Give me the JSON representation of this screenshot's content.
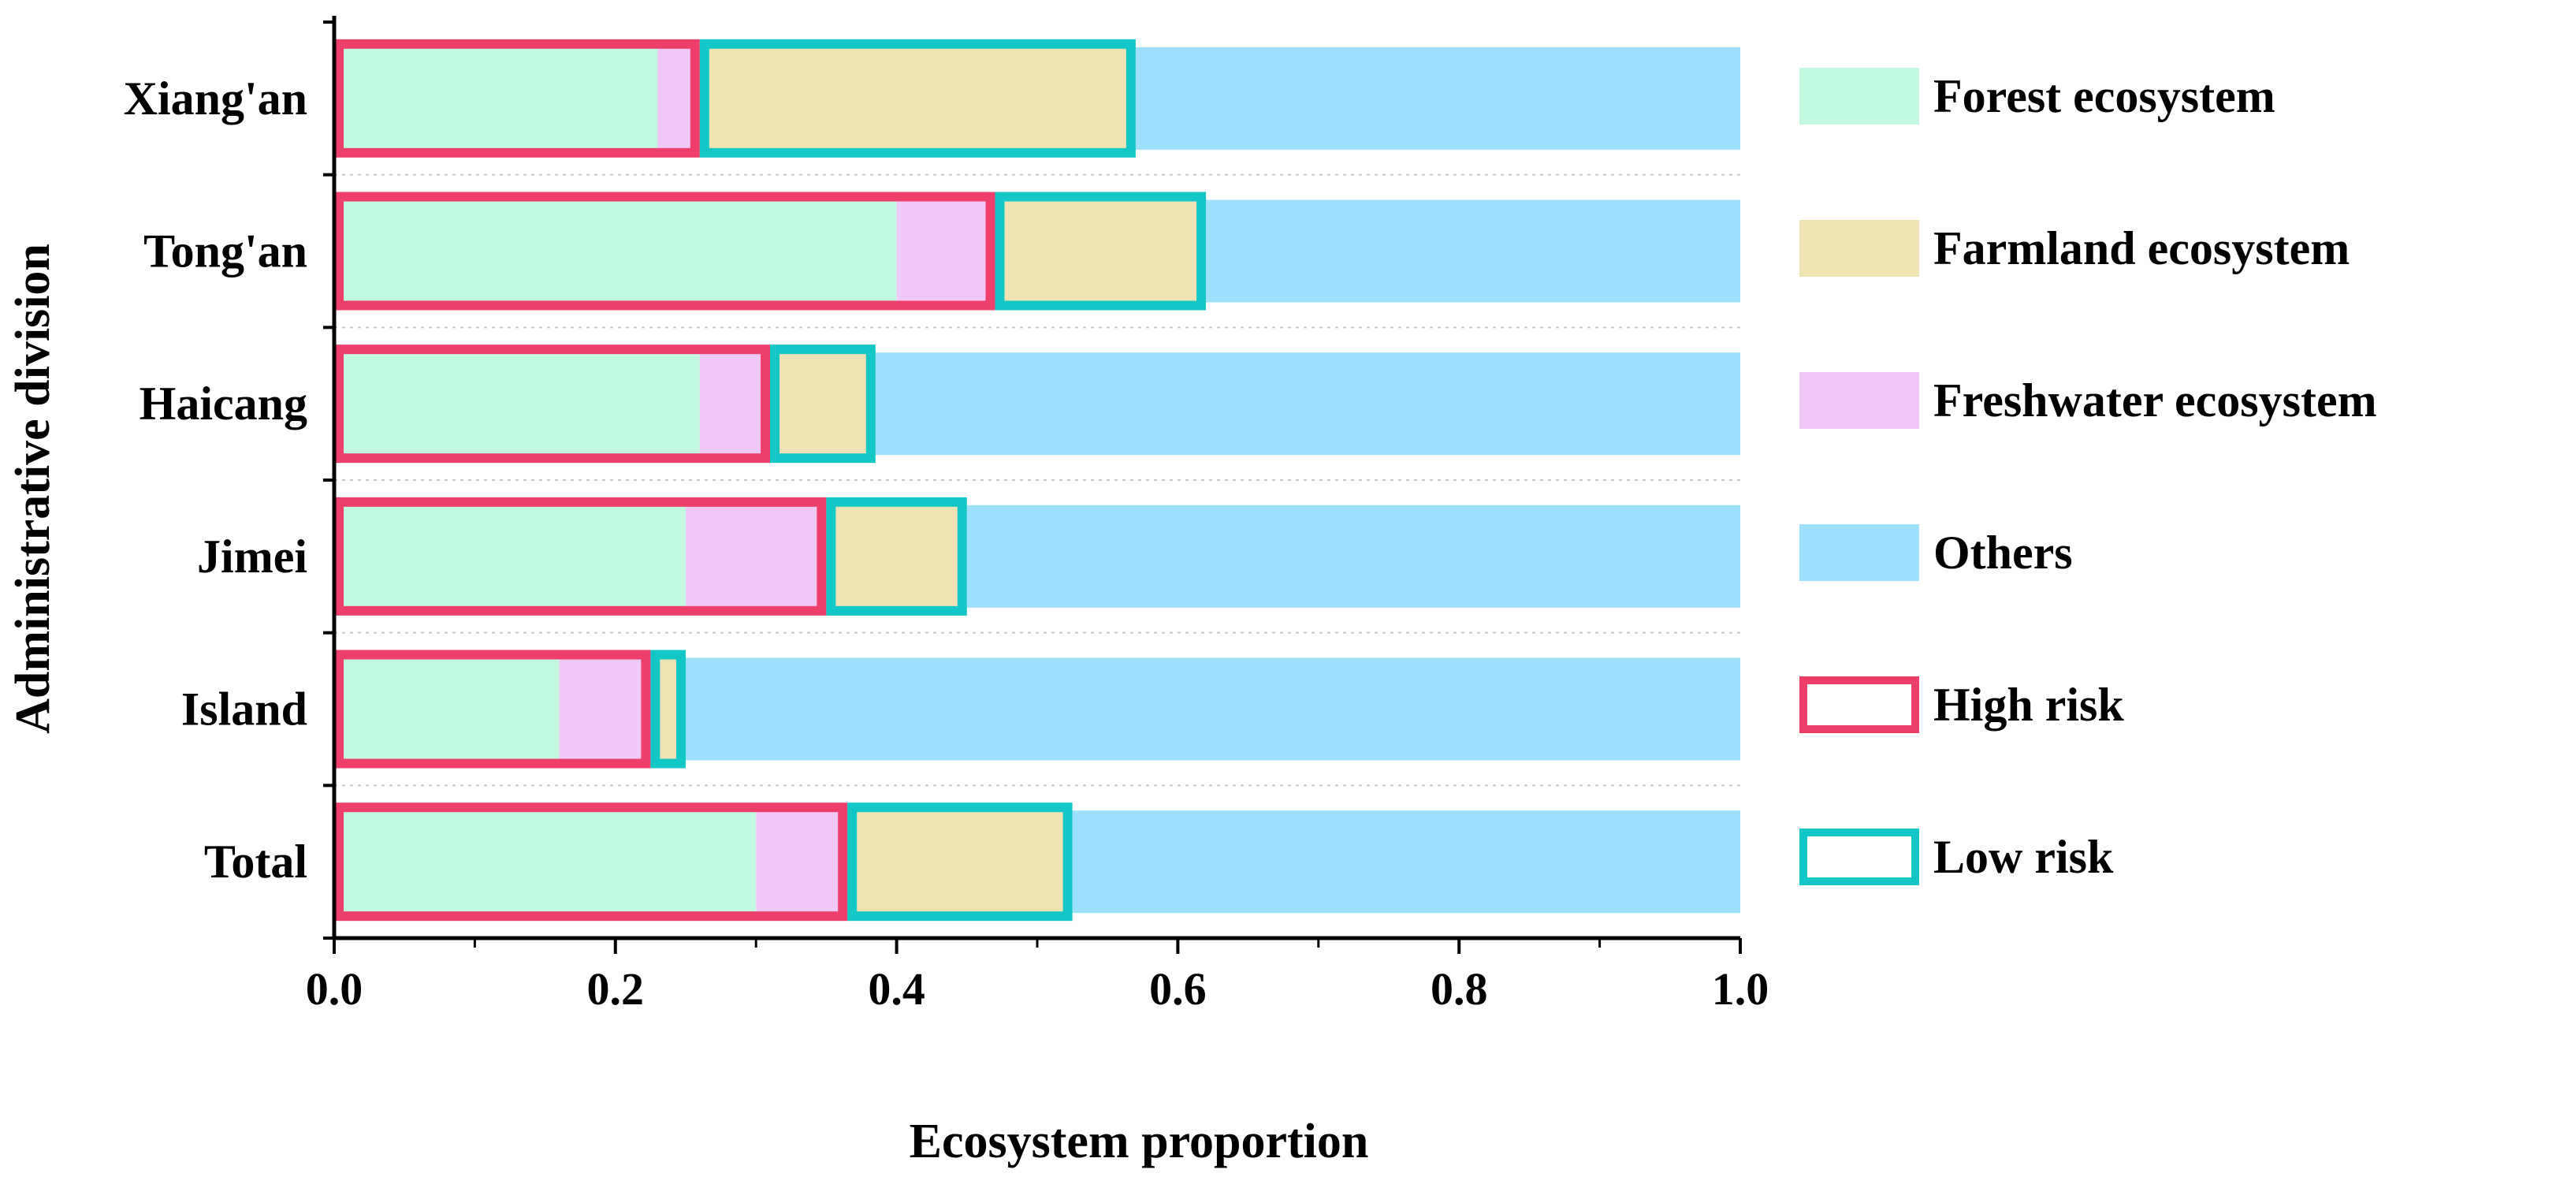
{
  "chart_data": {
    "type": "bar",
    "orientation": "horizontal",
    "stacked": true,
    "categories": [
      "Xiang'an",
      "Tong'an",
      "Haicang",
      "Jimei",
      "Island",
      "Total"
    ],
    "series": [
      {
        "name": "Forest ecosystem",
        "color": "#c2f7e0",
        "values": [
          0.23,
          0.4,
          0.26,
          0.25,
          0.16,
          0.3
        ]
      },
      {
        "name": "Freshwater ecosystem",
        "color": "#f0c8f8",
        "values": [
          0.03,
          0.07,
          0.05,
          0.1,
          0.065,
          0.065
        ]
      },
      {
        "name": "Farmland ecosystem",
        "color": "#efe3b4",
        "values": [
          0.31,
          0.15,
          0.075,
          0.1,
          0.025,
          0.16
        ]
      },
      {
        "name": "Others",
        "color": "#9de0fb",
        "values": [
          0.43,
          0.38,
          0.615,
          0.55,
          0.75,
          0.475
        ]
      }
    ],
    "risk_boxes": [
      {
        "name": "High risk",
        "color": "#ee3f6a",
        "ranges": [
          [
            0,
            0.26
          ],
          [
            0,
            0.47
          ],
          [
            0,
            0.31
          ],
          [
            0,
            0.35
          ],
          [
            0,
            0.225
          ],
          [
            0,
            0.365
          ]
        ]
      },
      {
        "name": "Low risk",
        "color": "#14c7c7",
        "ranges": [
          [
            0.26,
            0.57
          ],
          [
            0.47,
            0.62
          ],
          [
            0.31,
            0.385
          ],
          [
            0.35,
            0.45
          ],
          [
            0.225,
            0.25
          ],
          [
            0.365,
            0.525
          ]
        ]
      }
    ],
    "legend": [
      {
        "label": "Forest ecosystem",
        "kind": "fill",
        "color": "#c2f7e0"
      },
      {
        "label": "Farmland ecosystem",
        "kind": "fill",
        "color": "#efe3b4"
      },
      {
        "label": "Freshwater ecosystem",
        "kind": "fill",
        "color": "#f0c8f8"
      },
      {
        "label": "Others",
        "kind": "fill",
        "color": "#9de0fb"
      },
      {
        "label": "High risk",
        "kind": "outline",
        "color": "#ee3f6a"
      },
      {
        "label": "Low risk",
        "kind": "outline",
        "color": "#14c7c7"
      }
    ],
    "xlabel": "Ecosystem proportion",
    "ylabel": "Administrative division",
    "xlim": [
      0,
      1.0
    ],
    "xticks": [
      "0.0",
      "0.2",
      "0.4",
      "0.6",
      "0.8",
      "1.0"
    ],
    "legend_position": "right"
  }
}
